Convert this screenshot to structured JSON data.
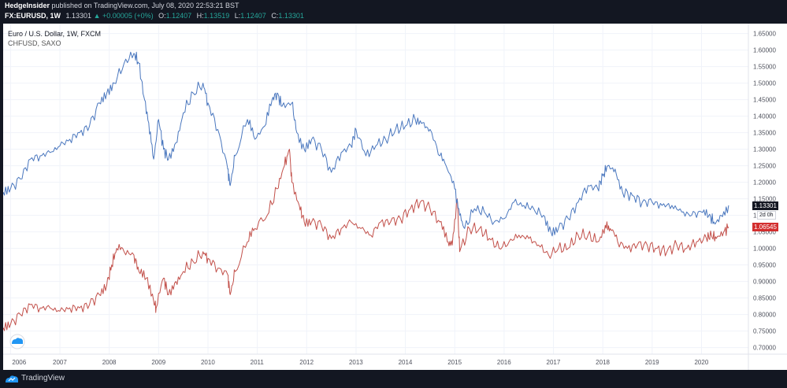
{
  "header": {
    "author": "HedgeInsider",
    "published_text": "published on TradingView.com, July 08, 2020 22:53:21 BST",
    "symbol": "FX:EURUSD, 1W",
    "last": "1.13301",
    "change_arrow": "▲",
    "change": "+0.00005 (+0%)",
    "o_label": "O:",
    "o_value": "1.12407",
    "h_label": "H:",
    "h_value": "1.13519",
    "l_label": "L:",
    "l_value": "1.12407",
    "c_label": "C:",
    "c_value": "1.13301"
  },
  "legend": {
    "main": "Euro / U.S. Dollar, 1W, FXCM",
    "compare": "CHFUSD, SAXO"
  },
  "badges": {
    "eurusd": "1.13301",
    "eurusd_time": "2d 0h",
    "chfusd": "1.06545"
  },
  "footer": {
    "brand": "TradingView"
  },
  "colors": {
    "eurusd": "#4a77be",
    "chfusd": "#c2504a",
    "background": "#ffffff",
    "frame": "#131722"
  },
  "chart_data": {
    "type": "line",
    "x_ticks": [
      "2006",
      "2007",
      "2008",
      "2009",
      "2010",
      "2011",
      "2012",
      "2013",
      "2014",
      "2015",
      "2016",
      "2017",
      "2018",
      "2019",
      "2020"
    ],
    "y_ticks": [
      "1.65000",
      "1.60000",
      "1.55000",
      "1.50000",
      "1.45000",
      "1.40000",
      "1.35000",
      "1.30000",
      "1.25000",
      "1.20000",
      "1.15000",
      "1.10000",
      "1.05000",
      "1.00000",
      "0.95000",
      "0.90000",
      "0.85000",
      "0.80000",
      "0.75000",
      "0.70000"
    ],
    "ylim": [
      0.68,
      1.68
    ],
    "xlim": [
      2005.85,
      2020.95
    ],
    "series": [
      {
        "name": "EURUSD",
        "points": [
          [
            2005.85,
            1.17
          ],
          [
            2006.0,
            1.18
          ],
          [
            2006.2,
            1.21
          ],
          [
            2006.4,
            1.27
          ],
          [
            2006.6,
            1.28
          ],
          [
            2006.8,
            1.29
          ],
          [
            2007.0,
            1.31
          ],
          [
            2007.2,
            1.33
          ],
          [
            2007.4,
            1.35
          ],
          [
            2007.6,
            1.37
          ],
          [
            2007.8,
            1.44
          ],
          [
            2007.95,
            1.47
          ],
          [
            2008.1,
            1.5
          ],
          [
            2008.3,
            1.56
          ],
          [
            2008.5,
            1.59
          ],
          [
            2008.6,
            1.56
          ],
          [
            2008.7,
            1.46
          ],
          [
            2008.8,
            1.38
          ],
          [
            2008.9,
            1.27
          ],
          [
            2009.0,
            1.39
          ],
          [
            2009.1,
            1.3
          ],
          [
            2009.2,
            1.27
          ],
          [
            2009.35,
            1.32
          ],
          [
            2009.5,
            1.41
          ],
          [
            2009.7,
            1.47
          ],
          [
            2009.9,
            1.5
          ],
          [
            2010.0,
            1.44
          ],
          [
            2010.2,
            1.36
          ],
          [
            2010.4,
            1.24
          ],
          [
            2010.45,
            1.19
          ],
          [
            2010.55,
            1.28
          ],
          [
            2010.8,
            1.39
          ],
          [
            2010.95,
            1.33
          ],
          [
            2011.15,
            1.37
          ],
          [
            2011.3,
            1.45
          ],
          [
            2011.4,
            1.47
          ],
          [
            2011.5,
            1.43
          ],
          [
            2011.7,
            1.44
          ],
          [
            2011.8,
            1.35
          ],
          [
            2011.95,
            1.3
          ],
          [
            2012.1,
            1.33
          ],
          [
            2012.3,
            1.3
          ],
          [
            2012.5,
            1.23
          ],
          [
            2012.7,
            1.29
          ],
          [
            2012.9,
            1.31
          ],
          [
            2013.0,
            1.36
          ],
          [
            2013.2,
            1.28
          ],
          [
            2013.4,
            1.31
          ],
          [
            2013.6,
            1.33
          ],
          [
            2013.8,
            1.36
          ],
          [
            2014.0,
            1.37
          ],
          [
            2014.2,
            1.39
          ],
          [
            2014.35,
            1.38
          ],
          [
            2014.5,
            1.36
          ],
          [
            2014.7,
            1.28
          ],
          [
            2014.85,
            1.24
          ],
          [
            2015.0,
            1.18
          ],
          [
            2015.1,
            1.1
          ],
          [
            2015.2,
            1.06
          ],
          [
            2015.4,
            1.12
          ],
          [
            2015.6,
            1.11
          ],
          [
            2015.8,
            1.08
          ],
          [
            2016.0,
            1.09
          ],
          [
            2016.2,
            1.14
          ],
          [
            2016.4,
            1.13
          ],
          [
            2016.6,
            1.12
          ],
          [
            2016.8,
            1.1
          ],
          [
            2016.95,
            1.05
          ],
          [
            2017.1,
            1.06
          ],
          [
            2017.3,
            1.09
          ],
          [
            2017.5,
            1.14
          ],
          [
            2017.7,
            1.19
          ],
          [
            2017.9,
            1.18
          ],
          [
            2018.0,
            1.22
          ],
          [
            2018.1,
            1.25
          ],
          [
            2018.25,
            1.24
          ],
          [
            2018.4,
            1.17
          ],
          [
            2018.6,
            1.16
          ],
          [
            2018.8,
            1.14
          ],
          [
            2019.0,
            1.14
          ],
          [
            2019.2,
            1.13
          ],
          [
            2019.4,
            1.13
          ],
          [
            2019.6,
            1.11
          ],
          [
            2019.8,
            1.1
          ],
          [
            2020.0,
            1.11
          ],
          [
            2020.15,
            1.1
          ],
          [
            2020.25,
            1.08
          ],
          [
            2020.4,
            1.1
          ],
          [
            2020.55,
            1.13
          ]
        ]
      },
      {
        "name": "CHFUSD",
        "points": [
          [
            2005.85,
            0.76
          ],
          [
            2006.0,
            0.77
          ],
          [
            2006.2,
            0.8
          ],
          [
            2006.4,
            0.83
          ],
          [
            2006.6,
            0.82
          ],
          [
            2006.8,
            0.82
          ],
          [
            2007.0,
            0.81
          ],
          [
            2007.2,
            0.82
          ],
          [
            2007.4,
            0.82
          ],
          [
            2007.6,
            0.83
          ],
          [
            2007.8,
            0.86
          ],
          [
            2007.95,
            0.89
          ],
          [
            2008.05,
            0.95
          ],
          [
            2008.15,
            1.0
          ],
          [
            2008.3,
            0.99
          ],
          [
            2008.5,
            0.98
          ],
          [
            2008.6,
            0.93
          ],
          [
            2008.75,
            0.91
          ],
          [
            2008.9,
            0.84
          ],
          [
            2008.95,
            0.82
          ],
          [
            2009.1,
            0.91
          ],
          [
            2009.2,
            0.86
          ],
          [
            2009.35,
            0.9
          ],
          [
            2009.5,
            0.93
          ],
          [
            2009.7,
            0.96
          ],
          [
            2009.9,
            0.99
          ],
          [
            2010.0,
            0.97
          ],
          [
            2010.2,
            0.94
          ],
          [
            2010.4,
            0.92
          ],
          [
            2010.45,
            0.86
          ],
          [
            2010.55,
            0.93
          ],
          [
            2010.8,
            1.02
          ],
          [
            2010.95,
            1.06
          ],
          [
            2011.2,
            1.1
          ],
          [
            2011.4,
            1.18
          ],
          [
            2011.55,
            1.25
          ],
          [
            2011.65,
            1.3
          ],
          [
            2011.7,
            1.2
          ],
          [
            2011.85,
            1.13
          ],
          [
            2011.95,
            1.08
          ],
          [
            2012.1,
            1.08
          ],
          [
            2012.3,
            1.07
          ],
          [
            2012.5,
            1.03
          ],
          [
            2012.7,
            1.06
          ],
          [
            2012.9,
            1.08
          ],
          [
            2013.1,
            1.06
          ],
          [
            2013.3,
            1.04
          ],
          [
            2013.5,
            1.08
          ],
          [
            2013.7,
            1.08
          ],
          [
            2013.9,
            1.09
          ],
          [
            2014.1,
            1.12
          ],
          [
            2014.3,
            1.14
          ],
          [
            2014.5,
            1.12
          ],
          [
            2014.7,
            1.08
          ],
          [
            2014.85,
            1.02
          ],
          [
            2014.95,
            1.01
          ],
          [
            2015.05,
            1.15
          ],
          [
            2015.1,
            0.99
          ],
          [
            2015.3,
            1.06
          ],
          [
            2015.5,
            1.06
          ],
          [
            2015.7,
            1.03
          ],
          [
            2015.9,
            1.0
          ],
          [
            2016.1,
            1.02
          ],
          [
            2016.3,
            1.04
          ],
          [
            2016.5,
            1.03
          ],
          [
            2016.7,
            1.01
          ],
          [
            2016.9,
            0.98
          ],
          [
            2017.1,
            1.0
          ],
          [
            2017.3,
            1.0
          ],
          [
            2017.5,
            1.04
          ],
          [
            2017.7,
            1.04
          ],
          [
            2017.9,
            1.02
          ],
          [
            2018.05,
            1.07
          ],
          [
            2018.15,
            1.06
          ],
          [
            2018.3,
            1.02
          ],
          [
            2018.5,
            1.0
          ],
          [
            2018.7,
            1.01
          ],
          [
            2018.9,
            1.01
          ],
          [
            2019.1,
            1.0
          ],
          [
            2019.3,
            0.99
          ],
          [
            2019.5,
            1.01
          ],
          [
            2019.7,
            1.0
          ],
          [
            2019.9,
            1.02
          ],
          [
            2020.1,
            1.03
          ],
          [
            2020.2,
            1.04
          ],
          [
            2020.3,
            1.03
          ],
          [
            2020.45,
            1.05
          ],
          [
            2020.55,
            1.065
          ]
        ]
      }
    ]
  }
}
